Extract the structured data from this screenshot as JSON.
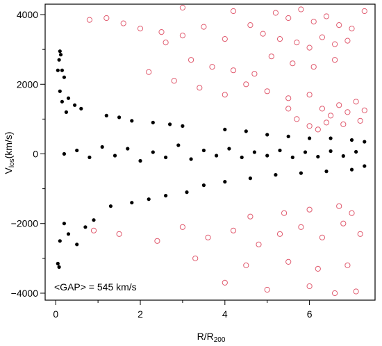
{
  "chart_data": {
    "type": "scatter",
    "title": "",
    "xlabel": "R/R",
    "xlabel_sub": "200",
    "ylabel": "V",
    "ylabel_sub": "los",
    "ylabel_unit": "(km/s)",
    "xlim": [
      -0.25,
      7.55
    ],
    "ylim": [
      -4200,
      4300
    ],
    "x_ticks": [
      0,
      2,
      4,
      6
    ],
    "y_ticks": [
      -4000,
      -2000,
      0,
      2000,
      4000
    ],
    "x_tick_labels": [
      "0",
      "2",
      "4",
      "6"
    ],
    "y_tick_labels": [
      "−4000",
      "−2000",
      "0",
      "2000",
      "4000"
    ],
    "grid": false,
    "annotation": "<GAP> = 545 km/s",
    "series": [
      {
        "marker": "filled-circle",
        "color": "#000000",
        "values": [
          [
            0.05,
            2400
          ],
          [
            0.08,
            2700
          ],
          [
            0.1,
            2950
          ],
          [
            0.12,
            2850
          ],
          [
            0.15,
            2400
          ],
          [
            0.2,
            2200
          ],
          [
            0.05,
            -3150
          ],
          [
            0.08,
            -3250
          ],
          [
            0.1,
            1800
          ],
          [
            0.3,
            1600
          ],
          [
            0.15,
            1500
          ],
          [
            0.45,
            1400
          ],
          [
            0.25,
            1200
          ],
          [
            0.6,
            1300
          ],
          [
            0.1,
            -2500
          ],
          [
            0.3,
            -2300
          ],
          [
            0.5,
            -2600
          ],
          [
            0.7,
            -2100
          ],
          [
            0.2,
            -2000
          ],
          [
            0.9,
            -1900
          ],
          [
            1.2,
            1100
          ],
          [
            1.5,
            1050
          ],
          [
            1.8,
            950
          ],
          [
            2.3,
            900
          ],
          [
            2.7,
            850
          ],
          [
            3.0,
            800
          ],
          [
            1.3,
            -1500
          ],
          [
            1.8,
            -1400
          ],
          [
            2.2,
            -1300
          ],
          [
            2.6,
            -1200
          ],
          [
            3.1,
            -1100
          ],
          [
            3.5,
            -900
          ],
          [
            4.0,
            700
          ],
          [
            4.5,
            650
          ],
          [
            5.0,
            550
          ],
          [
            5.5,
            500
          ],
          [
            6.0,
            450
          ],
          [
            6.5,
            450
          ],
          [
            7.0,
            400
          ],
          [
            7.3,
            350
          ],
          [
            4.0,
            -800
          ],
          [
            4.6,
            -700
          ],
          [
            5.2,
            -600
          ],
          [
            5.8,
            -550
          ],
          [
            6.4,
            -500
          ],
          [
            7.0,
            -450
          ],
          [
            7.3,
            -350
          ],
          [
            0.2,
            0
          ],
          [
            0.5,
            100
          ],
          [
            0.8,
            -100
          ],
          [
            1.1,
            200
          ],
          [
            1.4,
            -50
          ],
          [
            1.7,
            150
          ],
          [
            2.0,
            -200
          ],
          [
            2.3,
            50
          ],
          [
            2.6,
            -100
          ],
          [
            2.9,
            250
          ],
          [
            3.2,
            -150
          ],
          [
            3.5,
            100
          ],
          [
            3.8,
            -50
          ],
          [
            4.1,
            150
          ],
          [
            4.4,
            -100
          ],
          [
            4.7,
            50
          ],
          [
            5.0,
            -50
          ],
          [
            5.3,
            100
          ],
          [
            5.6,
            -100
          ],
          [
            5.9,
            50
          ],
          [
            6.2,
            -80
          ],
          [
            6.5,
            80
          ],
          [
            6.8,
            -60
          ],
          [
            7.1,
            60
          ]
        ]
      },
      {
        "marker": "open-circle",
        "color": "#e05a6e",
        "values": [
          [
            5.2,
            4050
          ],
          [
            5.5,
            3900
          ],
          [
            5.8,
            4150
          ],
          [
            6.1,
            3800
          ],
          [
            6.4,
            3950
          ],
          [
            6.7,
            3700
          ],
          [
            7.0,
            3600
          ],
          [
            7.3,
            4100
          ],
          [
            4.6,
            3700
          ],
          [
            4.9,
            3450
          ],
          [
            5.3,
            3300
          ],
          [
            5.7,
            3200
          ],
          [
            6.0,
            3050
          ],
          [
            6.3,
            3350
          ],
          [
            6.6,
            3150
          ],
          [
            6.9,
            3250
          ],
          [
            1.6,
            3750
          ],
          [
            2.0,
            3600
          ],
          [
            2.5,
            3500
          ],
          [
            3.0,
            3400
          ],
          [
            3.5,
            3650
          ],
          [
            4.0,
            3300
          ],
          [
            0.8,
            3850
          ],
          [
            1.2,
            3900
          ],
          [
            3.2,
            2700
          ],
          [
            3.7,
            2500
          ],
          [
            4.2,
            2400
          ],
          [
            4.7,
            2300
          ],
          [
            5.1,
            2800
          ],
          [
            5.6,
            2600
          ],
          [
            6.1,
            2500
          ],
          [
            6.6,
            2700
          ],
          [
            2.2,
            2350
          ],
          [
            2.8,
            2100
          ],
          [
            3.4,
            1900
          ],
          [
            4.0,
            1700
          ],
          [
            4.5,
            2000
          ],
          [
            5.0,
            1800
          ],
          [
            5.5,
            1600
          ],
          [
            6.0,
            1700
          ],
          [
            6.3,
            1300
          ],
          [
            6.5,
            1100
          ],
          [
            6.7,
            1400
          ],
          [
            6.9,
            1200
          ],
          [
            7.1,
            1500
          ],
          [
            7.3,
            1250
          ],
          [
            6.4,
            900
          ],
          [
            6.8,
            850
          ],
          [
            5.7,
            1000
          ],
          [
            6.0,
            800
          ],
          [
            7.2,
            950
          ],
          [
            6.2,
            700
          ],
          [
            0.9,
            -2200
          ],
          [
            1.5,
            -2300
          ],
          [
            2.4,
            -2500
          ],
          [
            3.0,
            -2100
          ],
          [
            3.6,
            -2400
          ],
          [
            4.2,
            -2200
          ],
          [
            4.8,
            -2600
          ],
          [
            5.3,
            -2300
          ],
          [
            5.8,
            -2100
          ],
          [
            6.3,
            -2400
          ],
          [
            6.8,
            -2000
          ],
          [
            7.2,
            -2300
          ],
          [
            3.3,
            -3000
          ],
          [
            4.5,
            -3200
          ],
          [
            5.5,
            -3100
          ],
          [
            6.2,
            -3300
          ],
          [
            6.9,
            -3200
          ],
          [
            4.0,
            -3700
          ],
          [
            5.0,
            -3900
          ],
          [
            6.0,
            -3800
          ],
          [
            6.6,
            -4000
          ],
          [
            7.1,
            -3950
          ],
          [
            4.6,
            -1800
          ],
          [
            5.4,
            -1700
          ],
          [
            6.0,
            -1600
          ],
          [
            6.7,
            -1500
          ],
          [
            7.0,
            -1700
          ],
          [
            3.0,
            4200
          ],
          [
            4.2,
            4100
          ],
          [
            2.6,
            3200
          ],
          [
            5.5,
            1300
          ]
        ]
      }
    ]
  }
}
